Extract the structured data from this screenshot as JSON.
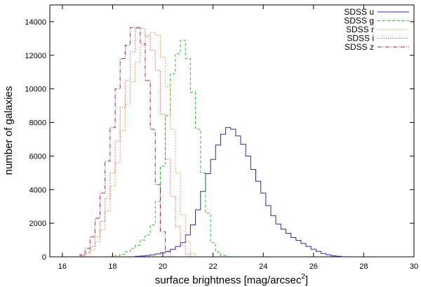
{
  "chart_data": {
    "type": "line",
    "xlabel": "surface brightness [mag/arcsec",
    "xlabel_superscript": "2",
    "xlabel_suffix": "]",
    "ylabel": "number of galaxies",
    "xlim": [
      15.5,
      30
    ],
    "ylim": [
      0,
      15000
    ],
    "x_ticks": [
      16,
      18,
      20,
      22,
      24,
      26,
      28,
      30
    ],
    "x_tick_labels": [
      "16",
      "18",
      "20",
      "22",
      "24",
      "26",
      "28",
      "30"
    ],
    "y_ticks": [
      0,
      2000,
      4000,
      6000,
      8000,
      10000,
      12000,
      14000
    ],
    "y_tick_labels": [
      "0",
      "2000",
      "4000",
      "6000",
      "8000",
      "10000",
      "12000",
      "14000"
    ],
    "grid": false,
    "legend_position": "top-right",
    "bin_width": 0.2,
    "series": [
      {
        "name": "SDSS u",
        "color": "#2a2aa8",
        "dash": "none",
        "x": [
          19.0,
          19.2,
          19.4,
          19.6,
          19.8,
          20.0,
          20.2,
          20.4,
          20.6,
          20.8,
          21.0,
          21.2,
          21.4,
          21.6,
          21.8,
          22.0,
          22.2,
          22.4,
          22.6,
          22.8,
          23.0,
          23.2,
          23.4,
          23.6,
          23.8,
          24.0,
          24.2,
          24.4,
          24.6,
          24.8,
          25.0,
          25.2,
          25.4,
          25.6,
          25.8,
          26.0,
          26.2,
          26.4,
          26.6,
          26.8,
          27.0,
          27.2
        ],
        "y": [
          30,
          50,
          80,
          120,
          170,
          240,
          320,
          450,
          620,
          850,
          1300,
          1900,
          2800,
          3900,
          4950,
          5800,
          6650,
          7300,
          7700,
          7600,
          7200,
          6700,
          6000,
          5200,
          4500,
          3800,
          3050,
          2450,
          1950,
          1650,
          1400,
          1150,
          980,
          800,
          620,
          450,
          320,
          200,
          120,
          60,
          30,
          10
        ]
      },
      {
        "name": "SDSS g",
        "color": "#22c022",
        "dash": "4,3",
        "x": [
          18.0,
          18.2,
          18.4,
          18.6,
          18.8,
          19.0,
          19.2,
          19.4,
          19.6,
          19.8,
          20.0,
          20.2,
          20.4,
          20.6,
          20.8,
          21.0,
          21.2,
          21.4,
          21.6,
          21.8,
          22.0,
          22.2,
          22.4,
          22.6
        ],
        "y": [
          30,
          80,
          150,
          300,
          500,
          700,
          1000,
          1300,
          1900,
          3300,
          5400,
          8400,
          10900,
          12100,
          12900,
          11800,
          9800,
          7600,
          5000,
          2600,
          850,
          280,
          80,
          20
        ]
      },
      {
        "name": "SDSS r",
        "color": "#ee9955",
        "dash": "2,2",
        "x": [
          16.8,
          17.0,
          17.2,
          17.4,
          17.6,
          17.8,
          18.0,
          18.2,
          18.4,
          18.6,
          18.8,
          19.0,
          19.2,
          19.4,
          19.6,
          19.8,
          20.0,
          20.2,
          20.4,
          20.6,
          20.8,
          21.0,
          21.2
        ],
        "y": [
          50,
          150,
          400,
          900,
          1600,
          2700,
          4200,
          5600,
          7500,
          9100,
          10400,
          11600,
          12600,
          13200,
          13350,
          13200,
          11900,
          10100,
          7600,
          5000,
          2500,
          900,
          200
        ]
      },
      {
        "name": "SDSS i",
        "color": "#dd2222",
        "dash": "1,2",
        "x": [
          16.8,
          17.0,
          17.2,
          17.4,
          17.6,
          17.8,
          18.0,
          18.2,
          18.4,
          18.6,
          18.8,
          19.0,
          19.2,
          19.4,
          19.6,
          19.8,
          20.0,
          20.2,
          20.4,
          20.6,
          20.8,
          21.0
        ],
        "y": [
          80,
          250,
          600,
          1200,
          2100,
          3500,
          5000,
          6900,
          8900,
          10500,
          12200,
          13600,
          13600,
          13100,
          12300,
          11100,
          8500,
          5800,
          3600,
          1800,
          700,
          150
        ]
      },
      {
        "name": "SDSS z",
        "color": "#aa2244",
        "dash": "6,2,1,2",
        "x": [
          16.8,
          17.0,
          17.2,
          17.4,
          17.6,
          17.8,
          18.0,
          18.2,
          18.4,
          18.6,
          18.8,
          19.0,
          19.2,
          19.4,
          19.6,
          19.8,
          20.0,
          20.2
        ],
        "y": [
          120,
          500,
          1200,
          2300,
          3800,
          5700,
          7700,
          10000,
          11800,
          12600,
          13650,
          13650,
          12700,
          10500,
          7600,
          4300,
          1500,
          300
        ]
      }
    ]
  }
}
